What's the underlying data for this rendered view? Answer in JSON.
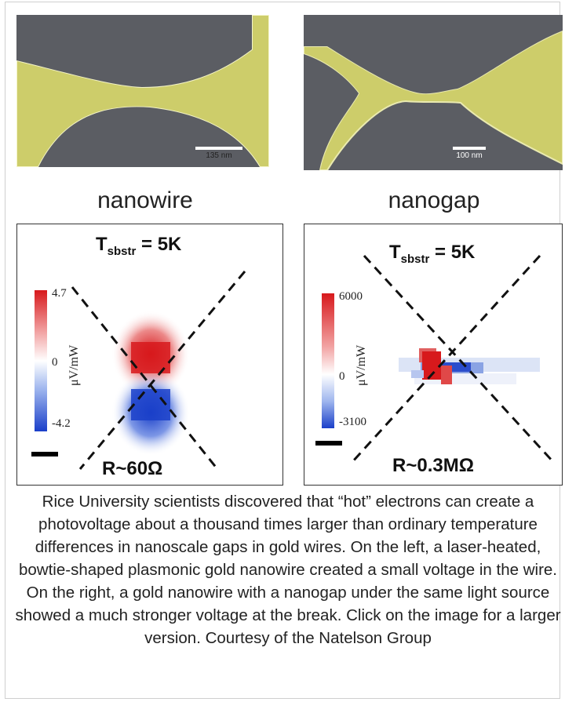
{
  "figure": {
    "left_panel": {
      "label": "nanowire",
      "sem_scale": "135 nm",
      "map_title_main": "T",
      "map_title_sub": "sbstr",
      "map_title_rest": " = 5K",
      "colorbar_max": "4.7",
      "colorbar_mid": "0",
      "colorbar_min": "-4.2",
      "colorbar_unit": "μV/mW",
      "resistance": "R~60Ω"
    },
    "right_panel": {
      "label": "nanogap",
      "sem_scale": "100 nm",
      "map_title_main": "T",
      "map_title_sub": "sbstr",
      "map_title_rest": " = 5K",
      "colorbar_max": "6000",
      "colorbar_mid": "0",
      "colorbar_min": "-3100",
      "colorbar_unit": "μV/mW",
      "resistance": "R~0.3MΩ"
    },
    "colors": {
      "gold": "#cdcd6a",
      "substrate": "#5b5d63",
      "positive": "#d7191c",
      "negative": "#1a3fc9"
    }
  },
  "caption": "Rice University scientists discovered that “hot” electrons can create a photovoltage about a thousand times larger than ordinary temperature differences in nanoscale gaps in gold wires. On the left, a laser-heated, bowtie-shaped plasmonic gold nanowire created a small voltage in the wire. On the right, a gold nanowire with a nanogap under the same light source showed a much stronger voltage at the break. Click on the image for a larger version. Courtesy of the Natelson Group"
}
